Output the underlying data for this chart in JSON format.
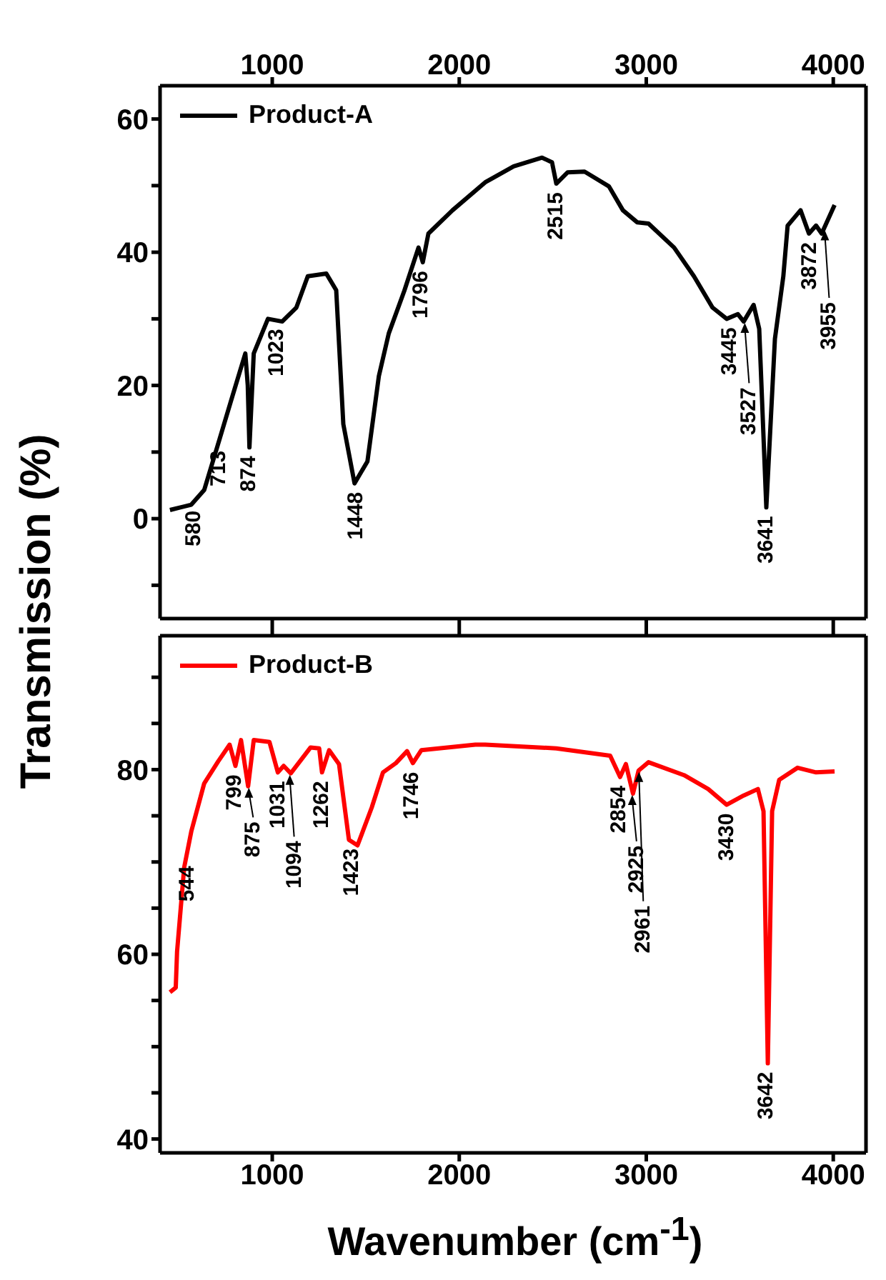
{
  "chart_data": [
    {
      "type": "line",
      "ylabel": "Transmission (%)",
      "xlim": [
        400,
        4175
      ],
      "xticks": [
        1000,
        2000,
        3000,
        4000
      ],
      "ylim": [
        -15,
        65
      ],
      "yticks": [
        {
          "value": -10,
          "label": null
        },
        0,
        {
          "value": 10,
          "label": null
        },
        20,
        {
          "value": 30,
          "label": null
        },
        40,
        {
          "value": 50,
          "label": null
        },
        60
      ],
      "legend": "top left",
      "series": [
        {
          "name": "Product-A",
          "color": "#000000",
          "x": [
            453,
            567,
            636,
            719,
            787,
            856,
            869,
            878,
            901,
            977,
            1053,
            1129,
            1190,
            1289,
            1342,
            1380,
            1440,
            1509,
            1570,
            1623,
            1706,
            1782,
            1805,
            1835,
            1964,
            2139,
            2291,
            2443,
            2496,
            2519,
            2580,
            2670,
            2800,
            2875,
            2951,
            3012,
            3149,
            3255,
            3354,
            3430,
            3490,
            3521,
            3574,
            3604,
            3642,
            3688,
            3733,
            3756,
            3825,
            3870,
            3908,
            3938,
            4007
          ],
          "values": [
            1.3,
            2.1,
            4.3,
            12,
            18.4,
            24.8,
            20,
            10.7,
            24.8,
            30,
            29.6,
            31.7,
            36.4,
            36.8,
            34.3,
            14.2,
            5.3,
            8.6,
            21.4,
            27.8,
            34.2,
            40.7,
            38.5,
            42.8,
            46.3,
            50.5,
            52.9,
            54.2,
            53.5,
            50.3,
            52,
            52.1,
            49.9,
            46.3,
            44.5,
            44.3,
            40.7,
            36.4,
            31.7,
            30,
            30.7,
            29.6,
            32.1,
            28.5,
            1.7,
            27,
            36.4,
            44,
            46.3,
            42.8,
            44,
            42.8,
            47.1
          ]
        }
      ],
      "annotations": [
        {
          "text": "580",
          "x": 580,
          "y": 2.5
        },
        {
          "text": "713",
          "x": 713,
          "y": 11.5
        },
        {
          "text": "874",
          "x": 874,
          "y": 10.7
        },
        {
          "text": "1023",
          "x": 1023,
          "y": 29.8
        },
        {
          "text": "1448",
          "x": 1448,
          "y": 5.3
        },
        {
          "text": "1796",
          "x": 1796,
          "y": 38.5
        },
        {
          "text": "2515",
          "x": 2515,
          "y": 50.3
        },
        {
          "text": "3445",
          "x": 3445,
          "y": 30
        },
        {
          "text": "3527",
          "x": 3527,
          "y": 29.6
        },
        {
          "text": "3641",
          "x": 3641,
          "y": 1.7
        },
        {
          "text": "3872",
          "x": 3872,
          "y": 42.8
        },
        {
          "text": "3955",
          "x": 3955,
          "y": 43.5
        }
      ]
    },
    {
      "type": "line",
      "xlabel": "Wavenumber (cm$^{-1}$)",
      "xlim": [
        400,
        4175
      ],
      "xticks": [
        1000,
        2000,
        3000,
        4000
      ],
      "ylim": [
        38.5,
        94.5
      ],
      "yticks": [
        40,
        {
          "value": 45,
          "label": null
        },
        {
          "value": 50,
          "label": null
        },
        {
          "value": 55,
          "label": null
        },
        60,
        {
          "value": 65,
          "label": null
        },
        {
          "value": 70,
          "label": null
        },
        {
          "value": 75,
          "label": null
        },
        80,
        {
          "value": 85,
          "label": null
        },
        {
          "value": 90,
          "label": null
        }
      ],
      "legend": "top left",
      "series": [
        {
          "name": "Product-B",
          "color": "#ff0000",
          "x": [
            453,
            484,
            491,
            529,
            567,
            636,
            711,
            772,
            803,
            833,
            871,
            901,
            985,
            1030,
            1061,
            1099,
            1205,
            1251,
            1266,
            1304,
            1357,
            1410,
            1456,
            1532,
            1592,
            1661,
            1721,
            1752,
            1797,
            2086,
            2139,
            2519,
            2807,
            2860,
            2891,
            2929,
            2959,
            3012,
            3202,
            3331,
            3430,
            3521,
            3597,
            3627,
            3650,
            3673,
            3711,
            3809,
            3908,
            4007
          ],
          "values": [
            55.9,
            56.4,
            60.3,
            69.4,
            73.3,
            78.5,
            80.9,
            82.7,
            80.4,
            83.2,
            78.2,
            83.2,
            83,
            79.7,
            80.4,
            79.6,
            82.4,
            82.3,
            79.7,
            82.1,
            80.6,
            72.4,
            71.8,
            75.9,
            79.7,
            80.7,
            82,
            80.7,
            82.1,
            82.7,
            82.7,
            82.3,
            81.5,
            79.2,
            80.6,
            77.4,
            79.9,
            80.8,
            79.4,
            77.9,
            76.2,
            77.2,
            77.9,
            75.5,
            48.2,
            75.5,
            78.9,
            80.2,
            79.7,
            79.8
          ]
        }
      ],
      "annotations": [
        {
          "text": "544",
          "x": 544,
          "y": 70.5
        },
        {
          "text": "799",
          "x": 799,
          "y": 80.4
        },
        {
          "text": "875",
          "x": 875,
          "y": 78.2
        },
        {
          "text": "1031",
          "x": 1031,
          "y": 79.7
        },
        {
          "text": "1094",
          "x": 1094,
          "y": 79.6
        },
        {
          "text": "1262",
          "x": 1262,
          "y": 79.7
        },
        {
          "text": "1423",
          "x": 1423,
          "y": 72.4
        },
        {
          "text": "1746",
          "x": 1746,
          "y": 80.7
        },
        {
          "text": "2854",
          "x": 2854,
          "y": 79.2
        },
        {
          "text": "2925",
          "x": 2925,
          "y": 77.4
        },
        {
          "text": "2961",
          "x": 2961,
          "y": 79.9
        },
        {
          "text": "3430",
          "x": 3430,
          "y": 76.2
        },
        {
          "text": "3642",
          "x": 3642,
          "y": 48.2
        }
      ]
    }
  ]
}
